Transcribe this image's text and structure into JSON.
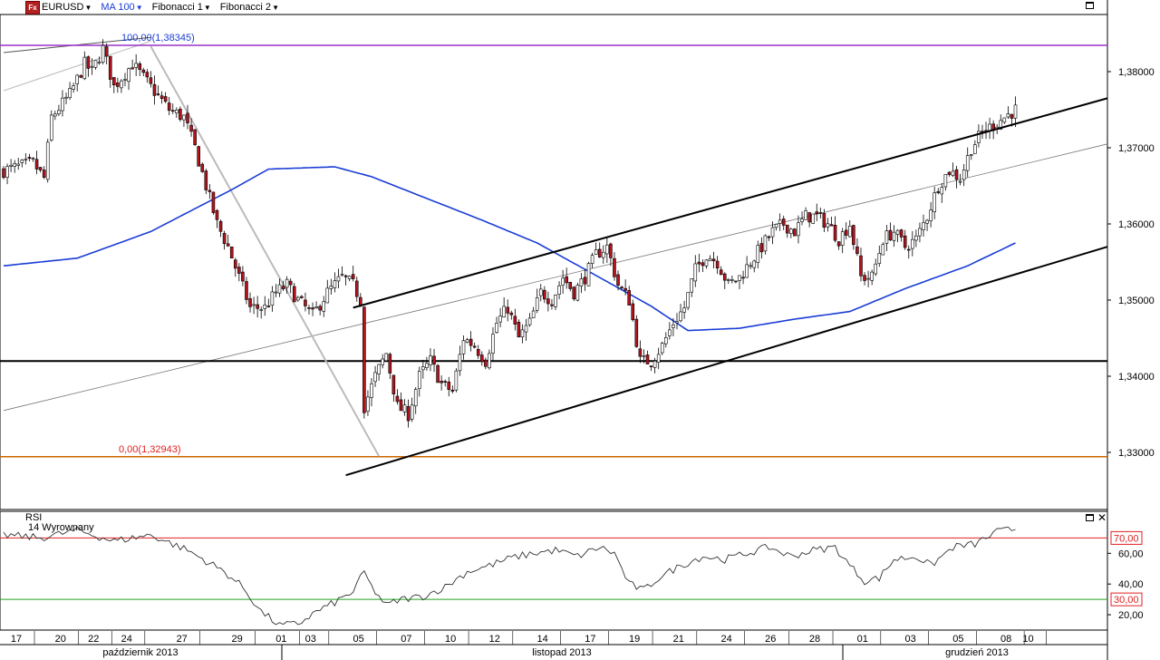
{
  "toolbar": {
    "logo_text": "Fx",
    "symbol": "EURUSD",
    "ma_label": "MA 100",
    "fib1_label": "Fibonacci 1",
    "fib2_label": "Fibonacci 2"
  },
  "colors": {
    "bull": "#ffffff",
    "bear": "#b3141e",
    "ma": "#1a3dd6",
    "fib_top": "#9b30c8",
    "fib_bottom": "#cc6600",
    "rsi_upper": "#e02020",
    "rsi_lower": "#22a022"
  },
  "chart_data": [
    {
      "type": "candlestick",
      "title": "EURUSD",
      "ylim": [
        1.3225,
        1.3875
      ],
      "y_ticks": [
        "1,38000",
        "1,37000",
        "1,36000",
        "1,35000",
        "1,34000",
        "1,33000"
      ],
      "y_tick_values": [
        1.38,
        1.37,
        1.36,
        1.35,
        1.34,
        1.33
      ],
      "anchor_closes": [
        [
          0,
          1.367
        ],
        [
          8,
          1.368
        ],
        [
          11,
          1.366
        ],
        [
          13,
          1.374
        ],
        [
          18,
          1.377
        ],
        [
          22,
          1.381
        ],
        [
          24,
          1.38
        ],
        [
          27,
          1.383
        ],
        [
          30,
          1.378
        ],
        [
          35,
          1.381
        ],
        [
          40,
          1.378
        ],
        [
          45,
          1.375
        ],
        [
          49,
          1.374
        ],
        [
          52,
          1.37
        ],
        [
          55,
          1.365
        ],
        [
          58,
          1.36
        ],
        [
          61,
          1.357
        ],
        [
          64,
          1.353
        ],
        [
          67,
          1.349
        ],
        [
          71,
          1.349
        ],
        [
          74,
          1.351
        ],
        [
          77,
          1.352
        ],
        [
          80,
          1.35
        ],
        [
          84,
          1.348
        ],
        [
          88,
          1.351
        ],
        [
          92,
          1.353
        ],
        [
          95,
          1.352
        ],
        [
          97,
          1.35
        ],
        [
          98,
          1.336
        ],
        [
          101,
          1.34
        ],
        [
          104,
          1.343
        ],
        [
          107,
          1.336
        ],
        [
          110,
          1.335
        ],
        [
          113,
          1.34
        ],
        [
          116,
          1.342
        ],
        [
          119,
          1.339
        ],
        [
          122,
          1.338
        ],
        [
          125,
          1.345
        ],
        [
          128,
          1.344
        ],
        [
          131,
          1.342
        ],
        [
          134,
          1.347
        ],
        [
          137,
          1.349
        ],
        [
          140,
          1.345
        ],
        [
          143,
          1.347
        ],
        [
          146,
          1.351
        ],
        [
          149,
          1.35
        ],
        [
          152,
          1.353
        ],
        [
          155,
          1.351
        ],
        [
          158,
          1.353
        ],
        [
          161,
          1.356
        ],
        [
          164,
          1.357
        ],
        [
          167,
          1.352
        ],
        [
          170,
          1.35
        ],
        [
          173,
          1.342
        ],
        [
          176,
          1.342
        ],
        [
          179,
          1.344
        ],
        [
          182,
          1.347
        ],
        [
          185,
          1.349
        ],
        [
          188,
          1.354
        ],
        [
          191,
          1.356
        ],
        [
          194,
          1.355
        ],
        [
          197,
          1.352
        ],
        [
          200,
          1.353
        ],
        [
          203,
          1.355
        ],
        [
          206,
          1.357
        ],
        [
          209,
          1.359
        ],
        [
          212,
          1.36
        ],
        [
          215,
          1.359
        ],
        [
          218,
          1.361
        ],
        [
          221,
          1.361
        ],
        [
          224,
          1.36
        ],
        [
          227,
          1.358
        ],
        [
          230,
          1.36
        ],
        [
          233,
          1.353
        ],
        [
          236,
          1.353
        ],
        [
          239,
          1.358
        ],
        [
          242,
          1.359
        ],
        [
          245,
          1.357
        ],
        [
          248,
          1.358
        ],
        [
          251,
          1.361
        ],
        [
          254,
          1.365
        ],
        [
          257,
          1.367
        ],
        [
          260,
          1.366
        ],
        [
          263,
          1.37
        ],
        [
          266,
          1.372
        ],
        [
          269,
          1.373
        ],
        [
          272,
          1.374
        ],
        [
          275,
          1.375
        ]
      ],
      "ma_curve": [
        [
          1.3545,
          0
        ],
        [
          1.3555,
          20
        ],
        [
          1.359,
          40
        ],
        [
          1.3645,
          62
        ],
        [
          1.3672,
          72
        ],
        [
          1.3675,
          90
        ],
        [
          1.3662,
          100
        ],
        [
          1.3605,
          130
        ],
        [
          1.3575,
          145
        ],
        [
          1.3535,
          160
        ],
        [
          1.3492,
          176
        ],
        [
          1.346,
          186
        ],
        [
          1.3463,
          200
        ],
        [
          1.3475,
          215
        ],
        [
          1.3485,
          230
        ],
        [
          1.3515,
          245
        ],
        [
          1.3545,
          262
        ],
        [
          1.3575,
          275
        ]
      ],
      "horizontal_levels": [
        {
          "price": 1.38345,
          "label": "100,00(1,38345)",
          "color": "fib_top"
        },
        {
          "price": 1.32943,
          "label": "0,00(1,32943)",
          "color": "fib_bottom"
        },
        {
          "price": 1.342,
          "label": "",
          "color": "black"
        }
      ],
      "channel": {
        "upper": [
          [
            95,
            1.349
          ],
          [
            300,
            1.3765
          ]
        ],
        "lower": [
          [
            93,
            1.327
          ],
          [
            300,
            1.357
          ]
        ],
        "mid": [
          [
            0,
            1.3355
          ],
          [
            300,
            1.3705
          ]
        ],
        "fan": [
          [
            0,
            1.3825
          ],
          [
            40,
            1.3845
          ]
        ],
        "fan2": [
          [
            0,
            1.3775
          ],
          [
            40,
            1.384
          ]
        ],
        "fib_line": [
          [
            40,
            1.3833
          ],
          [
            102,
            1.3295
          ]
        ]
      }
    },
    {
      "type": "line",
      "title": "RSI",
      "subtitle": "14 Wyrownany",
      "ylim": [
        10,
        85
      ],
      "y_ticks": [
        "60,00",
        "40,00",
        "20,00"
      ],
      "y_tick_values": [
        60,
        40,
        20
      ],
      "levels": [
        {
          "value": 70,
          "label": "70,00"
        },
        {
          "value": 30,
          "label": "30,00"
        }
      ],
      "anchor_values": [
        [
          0,
          72
        ],
        [
          10,
          70
        ],
        [
          20,
          75
        ],
        [
          30,
          68
        ],
        [
          40,
          72
        ],
        [
          50,
          62
        ],
        [
          60,
          48
        ],
        [
          65,
          38
        ],
        [
          70,
          22
        ],
        [
          75,
          13
        ],
        [
          80,
          14
        ],
        [
          85,
          22
        ],
        [
          90,
          28
        ],
        [
          95,
          35
        ],
        [
          98,
          48
        ],
        [
          100,
          38
        ],
        [
          104,
          26
        ],
        [
          108,
          30
        ],
        [
          114,
          32
        ],
        [
          120,
          38
        ],
        [
          126,
          48
        ],
        [
          132,
          52
        ],
        [
          138,
          57
        ],
        [
          144,
          60
        ],
        [
          150,
          62
        ],
        [
          156,
          58
        ],
        [
          162,
          64
        ],
        [
          166,
          60
        ],
        [
          170,
          40
        ],
        [
          174,
          36
        ],
        [
          178,
          44
        ],
        [
          184,
          52
        ],
        [
          190,
          58
        ],
        [
          196,
          56
        ],
        [
          202,
          60
        ],
        [
          208,
          64
        ],
        [
          214,
          58
        ],
        [
          220,
          62
        ],
        [
          226,
          64
        ],
        [
          230,
          52
        ],
        [
          234,
          42
        ],
        [
          238,
          44
        ],
        [
          242,
          56
        ],
        [
          248,
          58
        ],
        [
          252,
          52
        ],
        [
          258,
          64
        ],
        [
          264,
          66
        ],
        [
          270,
          74
        ],
        [
          275,
          76
        ]
      ]
    }
  ],
  "x_axis": {
    "day_labels": [
      "17",
      "20",
      "22",
      "24",
      "27",
      "29",
      "01",
      "03",
      "05",
      "07",
      "10",
      "12",
      "14",
      "17",
      "19",
      "21",
      "24",
      "26",
      "28",
      "01",
      "03",
      "05",
      "08",
      "10"
    ],
    "month_labels": [
      "październik 2013",
      "listopad 2013",
      "grudzień 2013"
    ]
  }
}
